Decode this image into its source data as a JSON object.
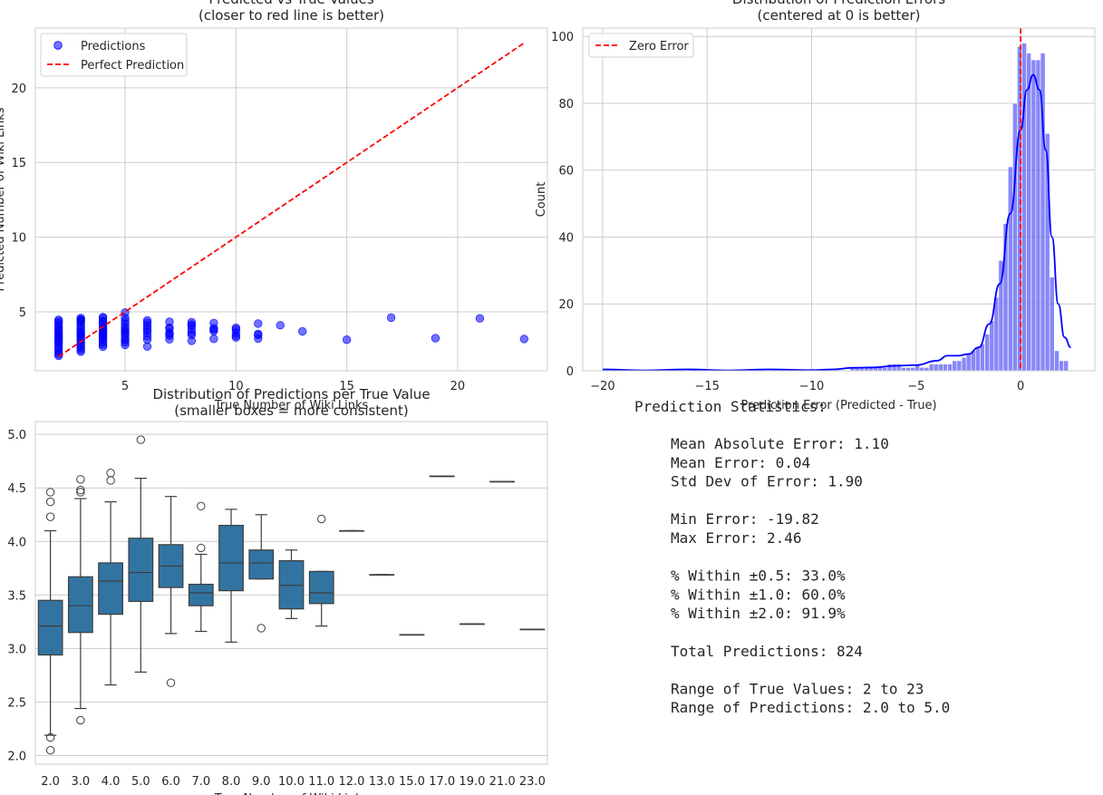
{
  "colors": {
    "scatter": "#0000ff",
    "perfect_line": "#ff0000",
    "hist_bar": "#5a5af5",
    "kde": "#0000ff",
    "box": "#3274a1",
    "grid": "#cccccc",
    "axes_edge": "#cccccc"
  },
  "chart_data": [
    {
      "type": "scatter",
      "title": "Predicted vs True Values",
      "subtitle": "(closer to red line is better)",
      "xlabel": "True Number of Wiki Links",
      "ylabel": "Predicted Number of Wiki Links",
      "xlim": [
        0.95,
        24.05
      ],
      "ylim": [
        1.05,
        24.0
      ],
      "xticks": [
        5,
        10,
        15,
        20
      ],
      "yticks": [
        5,
        10,
        15,
        20
      ],
      "grid": true,
      "legend": {
        "placement": "top-left",
        "entries": [
          "Predictions",
          "Perfect Prediction"
        ]
      },
      "perfect_line": {
        "from": [
          2,
          2
        ],
        "to": [
          23,
          23
        ]
      },
      "points": [
        [
          2,
          2.05
        ],
        [
          2,
          2.16
        ],
        [
          2,
          2.3
        ],
        [
          2,
          2.45
        ],
        [
          2,
          2.6
        ],
        [
          2,
          2.75
        ],
        [
          2,
          2.9
        ],
        [
          2,
          3.0
        ],
        [
          2,
          3.1
        ],
        [
          2,
          3.2
        ],
        [
          2,
          3.3
        ],
        [
          2,
          3.4
        ],
        [
          2,
          3.5
        ],
        [
          2,
          3.6
        ],
        [
          2,
          3.7
        ],
        [
          2,
          3.8
        ],
        [
          2,
          3.95
        ],
        [
          2,
          4.1
        ],
        [
          2,
          4.23
        ],
        [
          2,
          4.37
        ],
        [
          2,
          4.46
        ],
        [
          3,
          2.33
        ],
        [
          3,
          2.45
        ],
        [
          3,
          2.6
        ],
        [
          3,
          2.75
        ],
        [
          3,
          2.9
        ],
        [
          3,
          3.05
        ],
        [
          3,
          3.15
        ],
        [
          3,
          3.3
        ],
        [
          3,
          3.4
        ],
        [
          3,
          3.5
        ],
        [
          3,
          3.6
        ],
        [
          3,
          3.7
        ],
        [
          3,
          3.85
        ],
        [
          3,
          4.0
        ],
        [
          3,
          4.15
        ],
        [
          3,
          4.3
        ],
        [
          3,
          4.4
        ],
        [
          3,
          4.46
        ],
        [
          3,
          4.48
        ],
        [
          3,
          4.58
        ],
        [
          4,
          2.66
        ],
        [
          4,
          2.8
        ],
        [
          4,
          2.95
        ],
        [
          4,
          3.1
        ],
        [
          4,
          3.25
        ],
        [
          4,
          3.35
        ],
        [
          4,
          3.45
        ],
        [
          4,
          3.55
        ],
        [
          4,
          3.65
        ],
        [
          4,
          3.75
        ],
        [
          4,
          3.85
        ],
        [
          4,
          4.0
        ],
        [
          4,
          4.15
        ],
        [
          4,
          4.3
        ],
        [
          4,
          4.37
        ],
        [
          4,
          4.57
        ],
        [
          4,
          4.64
        ],
        [
          5,
          2.78
        ],
        [
          5,
          2.95
        ],
        [
          5,
          3.1
        ],
        [
          5,
          3.25
        ],
        [
          5,
          3.45
        ],
        [
          5,
          3.6
        ],
        [
          5,
          3.7
        ],
        [
          5,
          3.85
        ],
        [
          5,
          4.0
        ],
        [
          5,
          4.2
        ],
        [
          5,
          4.4
        ],
        [
          5,
          4.59
        ],
        [
          5,
          4.95
        ],
        [
          6,
          2.68
        ],
        [
          6,
          3.14
        ],
        [
          6,
          3.35
        ],
        [
          6,
          3.58
        ],
        [
          6,
          3.75
        ],
        [
          6,
          3.9
        ],
        [
          6,
          4.1
        ],
        [
          6,
          4.28
        ],
        [
          6,
          4.42
        ],
        [
          7,
          3.16
        ],
        [
          7,
          3.4
        ],
        [
          7,
          3.52
        ],
        [
          7,
          3.6
        ],
        [
          7,
          3.88
        ],
        [
          7,
          3.94
        ],
        [
          7,
          4.33
        ],
        [
          8,
          3.06
        ],
        [
          8,
          3.45
        ],
        [
          8,
          3.6
        ],
        [
          8,
          3.8
        ],
        [
          8,
          4.05
        ],
        [
          8,
          4.15
        ],
        [
          8,
          4.3
        ],
        [
          9,
          3.19
        ],
        [
          9,
          3.7
        ],
        [
          9,
          3.8
        ],
        [
          9,
          3.9
        ],
        [
          9,
          4.25
        ],
        [
          10,
          3.28
        ],
        [
          10,
          3.4
        ],
        [
          10,
          3.6
        ],
        [
          10,
          3.82
        ],
        [
          10,
          3.92
        ],
        [
          11,
          3.21
        ],
        [
          11,
          3.45
        ],
        [
          11,
          3.52
        ],
        [
          11,
          4.21
        ],
        [
          12,
          4.1
        ],
        [
          13,
          3.69
        ],
        [
          15,
          3.13
        ],
        [
          17,
          4.61
        ],
        [
          19,
          3.23
        ],
        [
          21,
          4.56
        ],
        [
          23,
          3.18
        ]
      ]
    },
    {
      "type": "bar",
      "subtype": "histogram",
      "title": "Distribution of Prediction Errors",
      "subtitle": "(centered at 0 is better)",
      "xlabel": "Prediction Error (Predicted - True)",
      "ylabel": "Count",
      "xlim": [
        -20.95,
        3.55
      ],
      "ylim": [
        0,
        102.5
      ],
      "xticks": [
        -20,
        -15,
        -10,
        -5,
        0
      ],
      "xtick_labels": [
        "−20",
        "−15",
        "−10",
        "−5",
        "0"
      ],
      "yticks": [
        0,
        20,
        40,
        60,
        80,
        100
      ],
      "grid": true,
      "legend": {
        "placement": "top-left",
        "entries": [
          "Zero Error"
        ]
      },
      "zero_line_x": 0,
      "bin_width": 0.2227,
      "bins": [
        [
          -19.82,
          0.6
        ],
        [
          -8.05,
          1
        ],
        [
          -7.83,
          1
        ],
        [
          -7.6,
          1
        ],
        [
          -7.38,
          1
        ],
        [
          -7.16,
          1
        ],
        [
          -6.94,
          1
        ],
        [
          -6.72,
          1
        ],
        [
          -6.5,
          1
        ],
        [
          -6.27,
          2
        ],
        [
          -6.05,
          2
        ],
        [
          -5.83,
          2
        ],
        [
          -5.61,
          1
        ],
        [
          -5.38,
          1
        ],
        [
          -5.16,
          1
        ],
        [
          -4.94,
          2
        ],
        [
          -4.72,
          1
        ],
        [
          -4.5,
          1
        ],
        [
          -4.27,
          2
        ],
        [
          -4.05,
          2
        ],
        [
          -3.83,
          2
        ],
        [
          -3.61,
          2
        ],
        [
          -3.38,
          2
        ],
        [
          -3.16,
          3
        ],
        [
          -2.94,
          3
        ],
        [
          -2.71,
          4
        ],
        [
          -2.49,
          5
        ],
        [
          -2.27,
          6
        ],
        [
          -2.05,
          7
        ],
        [
          -1.83,
          8
        ],
        [
          -1.6,
          11
        ],
        [
          -1.38,
          15
        ],
        [
          -1.16,
          22
        ],
        [
          -0.94,
          33
        ],
        [
          -0.72,
          44
        ],
        [
          -0.49,
          61
        ],
        [
          -0.27,
          80
        ],
        [
          -0.05,
          97
        ],
        [
          0.17,
          98
        ],
        [
          0.39,
          95
        ],
        [
          0.62,
          93
        ],
        [
          0.84,
          93
        ],
        [
          1.06,
          95
        ],
        [
          1.28,
          71
        ],
        [
          1.5,
          28
        ],
        [
          1.73,
          6
        ],
        [
          1.95,
          3
        ],
        [
          2.17,
          3
        ]
      ],
      "kde_points": [
        [
          -20,
          0.4
        ],
        [
          -18,
          0.1
        ],
        [
          -16,
          0.4
        ],
        [
          -14,
          0.1
        ],
        [
          -12,
          0.4
        ],
        [
          -10,
          0.2
        ],
        [
          -9,
          0.4
        ],
        [
          -8,
          0.9
        ],
        [
          -7,
          1.0
        ],
        [
          -6,
          1.5
        ],
        [
          -5,
          1.7
        ],
        [
          -4,
          3
        ],
        [
          -3.5,
          4.5
        ],
        [
          -3,
          4.5
        ],
        [
          -2.5,
          5
        ],
        [
          -2,
          7
        ],
        [
          -1.5,
          14
        ],
        [
          -1,
          26
        ],
        [
          -0.5,
          47
        ],
        [
          0,
          72
        ],
        [
          0.3,
          84
        ],
        [
          0.6,
          88.5
        ],
        [
          0.9,
          84
        ],
        [
          1.2,
          66
        ],
        [
          1.5,
          40
        ],
        [
          1.8,
          20
        ],
        [
          2.1,
          10
        ],
        [
          2.4,
          7
        ]
      ]
    },
    {
      "type": "bar",
      "subtype": "boxplot",
      "title": "Distribution of Predictions per True Value",
      "subtitle": "(smaller boxes = more consistent)",
      "xlabel": "True Number of Wiki Links",
      "ylabel": "",
      "ylim": [
        1.92,
        5.12
      ],
      "yticks": [
        2.0,
        2.5,
        3.0,
        3.5,
        4.0,
        4.5,
        5.0
      ],
      "grid": true,
      "categories": [
        "2.0",
        "3.0",
        "4.0",
        "5.0",
        "6.0",
        "7.0",
        "8.0",
        "9.0",
        "10.0",
        "11.0",
        "12.0",
        "13.0",
        "15.0",
        "17.0",
        "19.0",
        "21.0",
        "23.0"
      ],
      "boxes": [
        {
          "q1": 2.94,
          "med": 3.21,
          "q3": 3.45,
          "lo": 2.19,
          "hi": 4.1,
          "out": [
            2.05,
            2.17,
            4.23,
            4.37,
            4.46
          ]
        },
        {
          "q1": 3.15,
          "med": 3.4,
          "q3": 3.67,
          "lo": 2.44,
          "hi": 4.4,
          "out": [
            2.33,
            4.46,
            4.48,
            4.58
          ]
        },
        {
          "q1": 3.32,
          "med": 3.63,
          "q3": 3.8,
          "lo": 2.66,
          "hi": 4.37,
          "out": [
            4.57,
            4.64
          ]
        },
        {
          "q1": 3.44,
          "med": 3.71,
          "q3": 4.03,
          "lo": 2.78,
          "hi": 4.59,
          "out": [
            4.95
          ]
        },
        {
          "q1": 3.57,
          "med": 3.77,
          "q3": 3.97,
          "lo": 3.14,
          "hi": 4.42,
          "out": [
            2.68
          ]
        },
        {
          "q1": 3.4,
          "med": 3.52,
          "q3": 3.6,
          "lo": 3.16,
          "hi": 3.88,
          "out": [
            3.94,
            4.33
          ]
        },
        {
          "q1": 3.54,
          "med": 3.8,
          "q3": 4.15,
          "lo": 3.06,
          "hi": 4.3,
          "out": []
        },
        {
          "q1": 3.65,
          "med": 3.8,
          "q3": 3.92,
          "lo": 3.65,
          "hi": 4.25,
          "out": [
            3.19
          ]
        },
        {
          "q1": 3.37,
          "med": 3.59,
          "q3": 3.82,
          "lo": 3.28,
          "hi": 3.92,
          "out": []
        },
        {
          "q1": 3.42,
          "med": 3.52,
          "q3": 3.72,
          "lo": 3.21,
          "hi": 3.72,
          "out": [
            4.21
          ]
        },
        {
          "q1": 4.1,
          "med": 4.1,
          "q3": 4.1,
          "lo": 4.1,
          "hi": 4.1,
          "out": []
        },
        {
          "q1": 3.69,
          "med": 3.69,
          "q3": 3.69,
          "lo": 3.69,
          "hi": 3.69,
          "out": []
        },
        {
          "q1": 3.13,
          "med": 3.13,
          "q3": 3.13,
          "lo": 3.13,
          "hi": 3.13,
          "out": []
        },
        {
          "q1": 4.61,
          "med": 4.61,
          "q3": 4.61,
          "lo": 4.61,
          "hi": 4.61,
          "out": []
        },
        {
          "q1": 3.23,
          "med": 3.23,
          "q3": 3.23,
          "lo": 3.23,
          "hi": 3.23,
          "out": []
        },
        {
          "q1": 4.56,
          "med": 4.56,
          "q3": 4.56,
          "lo": 4.56,
          "hi": 4.56,
          "out": []
        },
        {
          "q1": 3.18,
          "med": 3.18,
          "q3": 3.18,
          "lo": 3.18,
          "hi": 3.18,
          "out": []
        }
      ]
    },
    {
      "type": "table",
      "title": "Prediction Statistics:",
      "lines": [
        "Mean Absolute Error: 1.10",
        "Mean Error: 0.04",
        "Std Dev of Error: 1.90",
        "",
        "Min Error: -19.82",
        "Max Error: 2.46",
        "",
        "% Within ±0.5: 33.0%",
        "% Within ±1.0: 60.0%",
        "% Within ±2.0: 91.9%",
        "",
        "Total Predictions: 824",
        "",
        "Range of True Values: 2 to 23",
        "Range of Predictions: 2.0 to 5.0"
      ]
    }
  ]
}
